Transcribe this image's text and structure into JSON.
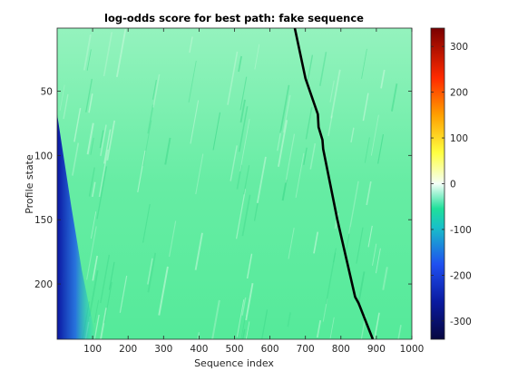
{
  "chart_data": {
    "type": "heatmap",
    "title": "log-odds score for best path: fake sequence",
    "xlabel": "Sequence index",
    "ylabel": "Profile state",
    "xlim": [
      0,
      1000
    ],
    "ylim": [
      1,
      243
    ],
    "y_reversed": true,
    "x_ticks": [
      100,
      200,
      300,
      400,
      500,
      600,
      700,
      800,
      900,
      1000
    ],
    "y_ticks": [
      50,
      100,
      150,
      200
    ],
    "colormap": "jet-like (dark blue → blue → cyan/green → white at 0 → yellow → red → dark red)",
    "colorbar": {
      "range": [
        -340,
        340
      ],
      "ticks": [
        300,
        200,
        100,
        0,
        -100,
        -200,
        -300
      ],
      "colors": {
        "min": "#07073f",
        "low": "#1f4ff0",
        "mid_low": "#1fe09a",
        "zero": "#f4fff8",
        "mid_high": "#ffff40",
        "high": "#ff2a00",
        "max": "#7a0000"
      }
    },
    "background_field": {
      "dominant_color": "#55ea9a",
      "light_color": "#c8fadb",
      "low_region_color": "#0d1fa8",
      "description_values": "scores mostly between -150 and 0; strongly negative (about -330) toward lower-left corner"
    },
    "best_path": {
      "color": "#000000",
      "points": [
        {
          "x": 670,
          "y": 1
        },
        {
          "x": 700,
          "y": 40
        },
        {
          "x": 735,
          "y": 68
        },
        {
          "x": 737,
          "y": 78
        },
        {
          "x": 748,
          "y": 88
        },
        {
          "x": 750,
          "y": 95
        },
        {
          "x": 790,
          "y": 150
        },
        {
          "x": 840,
          "y": 210
        },
        {
          "x": 850,
          "y": 215
        },
        {
          "x": 890,
          "y": 243
        }
      ]
    }
  }
}
